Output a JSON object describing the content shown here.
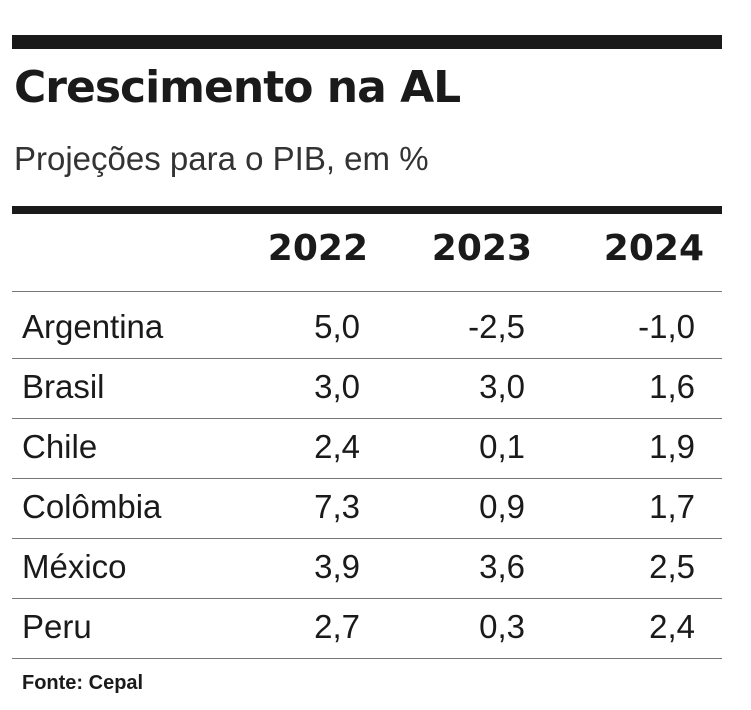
{
  "header": {
    "title": "Crescimento na AL",
    "subtitle": "Projeções para o PIB, em %"
  },
  "table": {
    "columns": [
      "2022",
      "2023",
      "2024"
    ],
    "rows": [
      {
        "label": "Argentina",
        "values": [
          "5,0",
          "-2,5",
          "-1,0"
        ]
      },
      {
        "label": "Brasil",
        "values": [
          "3,0",
          "3,0",
          "1,6"
        ]
      },
      {
        "label": "Chile",
        "values": [
          "2,4",
          "0,1",
          "1,9"
        ]
      },
      {
        "label": "Colômbia",
        "values": [
          "7,3",
          "0,9",
          "1,7"
        ]
      },
      {
        "label": "México",
        "values": [
          "3,9",
          "3,6",
          "2,5"
        ]
      },
      {
        "label": "Peru",
        "values": [
          "2,7",
          "0,3",
          "2,4"
        ]
      }
    ]
  },
  "footer": {
    "source": "Fonte: Cepal"
  }
}
